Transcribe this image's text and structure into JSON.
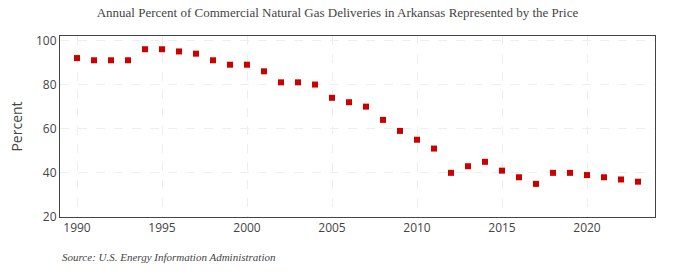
{
  "chart_data": {
    "type": "scatter",
    "title": "Annual Percent of Commercial Natural Gas Deliveries in Arkansas Represented by the Price",
    "ylabel": "Percent",
    "annotations": [
      "Source: U.S. Energy Information Administration"
    ],
    "x": [
      1990,
      1991,
      1992,
      1993,
      1994,
      1995,
      1996,
      1997,
      1998,
      1999,
      2000,
      2001,
      2002,
      2003,
      2004,
      2005,
      2006,
      2007,
      2008,
      2009,
      2010,
      2011,
      2012,
      2013,
      2014,
      2015,
      2016,
      2017,
      2018,
      2019,
      2020,
      2021,
      2022,
      2023
    ],
    "values": [
      92,
      91,
      91,
      91,
      96,
      96,
      95,
      94,
      91,
      89,
      89,
      86,
      81,
      81,
      80,
      74,
      72,
      70,
      64,
      59,
      55,
      51,
      40,
      43,
      45,
      41,
      38,
      35,
      40,
      40,
      39,
      38,
      37,
      36
    ],
    "color": "#cc0000",
    "marker": "square",
    "xlim": [
      1989,
      2024
    ],
    "xticks": [
      1990,
      1995,
      2000,
      2005,
      2010,
      2015,
      2020
    ],
    "ylim": [
      20,
      102
    ],
    "yticks": [
      20,
      40,
      60,
      80,
      100
    ],
    "grid": true
  }
}
